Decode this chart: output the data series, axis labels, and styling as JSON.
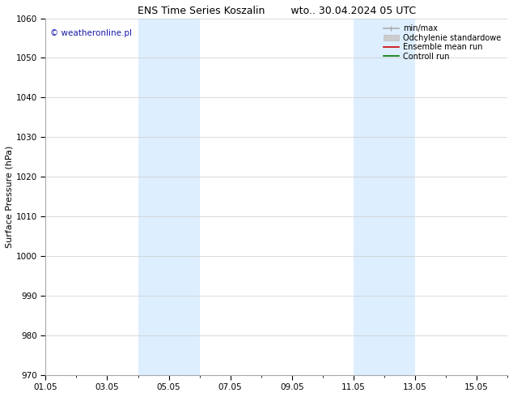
{
  "title_left": "ENS Time Series Koszalin",
  "title_right": "wto.. 30.04.2024 05 UTC",
  "ylabel": "Surface Pressure (hPa)",
  "ylim": [
    970,
    1060
  ],
  "yticks": [
    970,
    980,
    990,
    1000,
    1010,
    1020,
    1030,
    1040,
    1050,
    1060
  ],
  "xtick_labels": [
    "01.05",
    "03.05",
    "05.05",
    "07.05",
    "09.05",
    "11.05",
    "13.05",
    "15.05"
  ],
  "xtick_days": [
    1,
    3,
    5,
    7,
    9,
    11,
    13,
    15
  ],
  "shaded_bands": [
    {
      "xstart_day": 4,
      "xstart_hour": 0,
      "xend_day": 6,
      "xend_hour": 0
    },
    {
      "xstart_day": 11,
      "xstart_hour": 0,
      "xend_day": 13,
      "xend_hour": 0
    }
  ],
  "band_color": "#ddeeff",
  "watermark_text": "© weatheronline.pl",
  "watermark_color": "#1a1aaa",
  "legend_items": [
    {
      "label": "min/max",
      "color": "#aaaaaa",
      "lw": 1.2,
      "style": "line_with_caps"
    },
    {
      "label": "Odchylenie standardowe",
      "color": "#cccccc",
      "lw": 8,
      "style": "thick"
    },
    {
      "label": "Ensemble mean run",
      "color": "#cc0000",
      "lw": 1.2,
      "style": "line"
    },
    {
      "label": "Controll run",
      "color": "#007700",
      "lw": 1.2,
      "style": "line"
    }
  ],
  "bg_color": "#ffffff",
  "plot_bg_color": "#ffffff",
  "grid_color": "#cccccc",
  "spine_color": "#aaaaaa",
  "tick_label_fontsize": 7.5,
  "axis_label_fontsize": 8,
  "title_fontsize": 9,
  "legend_fontsize": 7,
  "watermark_fontsize": 7.5
}
